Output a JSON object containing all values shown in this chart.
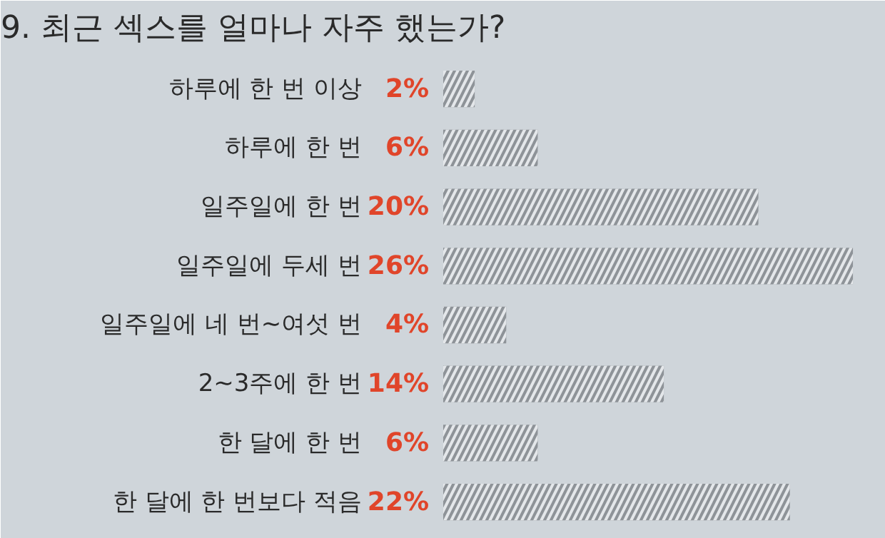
{
  "chart_data": {
    "type": "bar",
    "orientation": "horizontal",
    "title": "9. 최근 섹스를 얼마나 자주 했는가?",
    "categories": [
      "하루에 한 번 이상",
      "하루에 한 번",
      "일주일에 한 번",
      "일주일에 두세 번",
      "일주일에 네 번~여섯 번",
      "2~3주에 한 번",
      "한 달에 한 번",
      "한 달에 한 번보다 적음"
    ],
    "values": [
      2,
      6,
      20,
      26,
      4,
      14,
      6,
      22
    ],
    "value_labels": [
      "2%",
      "6%",
      "20%",
      "26%",
      "4%",
      "14%",
      "6%",
      "22%"
    ],
    "color": "#8e9398"
  }
}
